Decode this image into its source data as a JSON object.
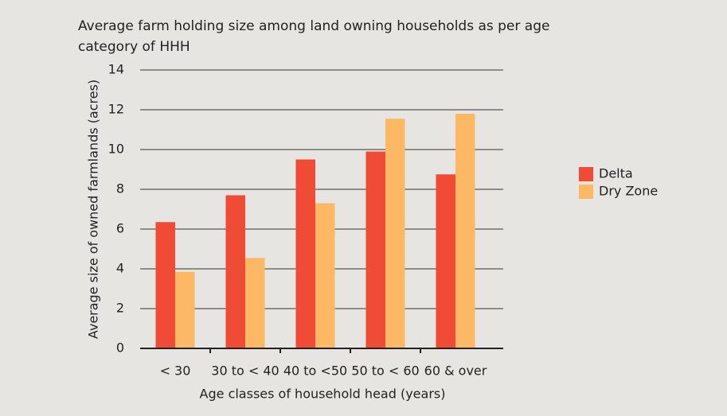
{
  "chart_data": {
    "type": "bar",
    "title": "Average farm holding size among land owning households as per age category of HHH",
    "x_label": "Age classes of household head (years)",
    "y_label": "Average size of owned farmlands (acres)",
    "categories": [
      "< 30",
      "30 to < 40",
      "40 to <50",
      "50 to < 60",
      "60 & over"
    ],
    "series": [
      {
        "name": "Delta",
        "color": "#ef4b35",
        "values": [
          6.35,
          7.7,
          9.5,
          9.9,
          8.75
        ]
      },
      {
        "name": "Dry Zone",
        "color": "#fdb866",
        "values": [
          3.85,
          4.55,
          7.3,
          11.55,
          11.8
        ]
      }
    ],
    "ylim": [
      0,
      14
    ],
    "yticks": [
      0,
      2,
      4,
      6,
      8,
      10,
      12,
      14
    ],
    "grid": true,
    "legend": "right"
  }
}
